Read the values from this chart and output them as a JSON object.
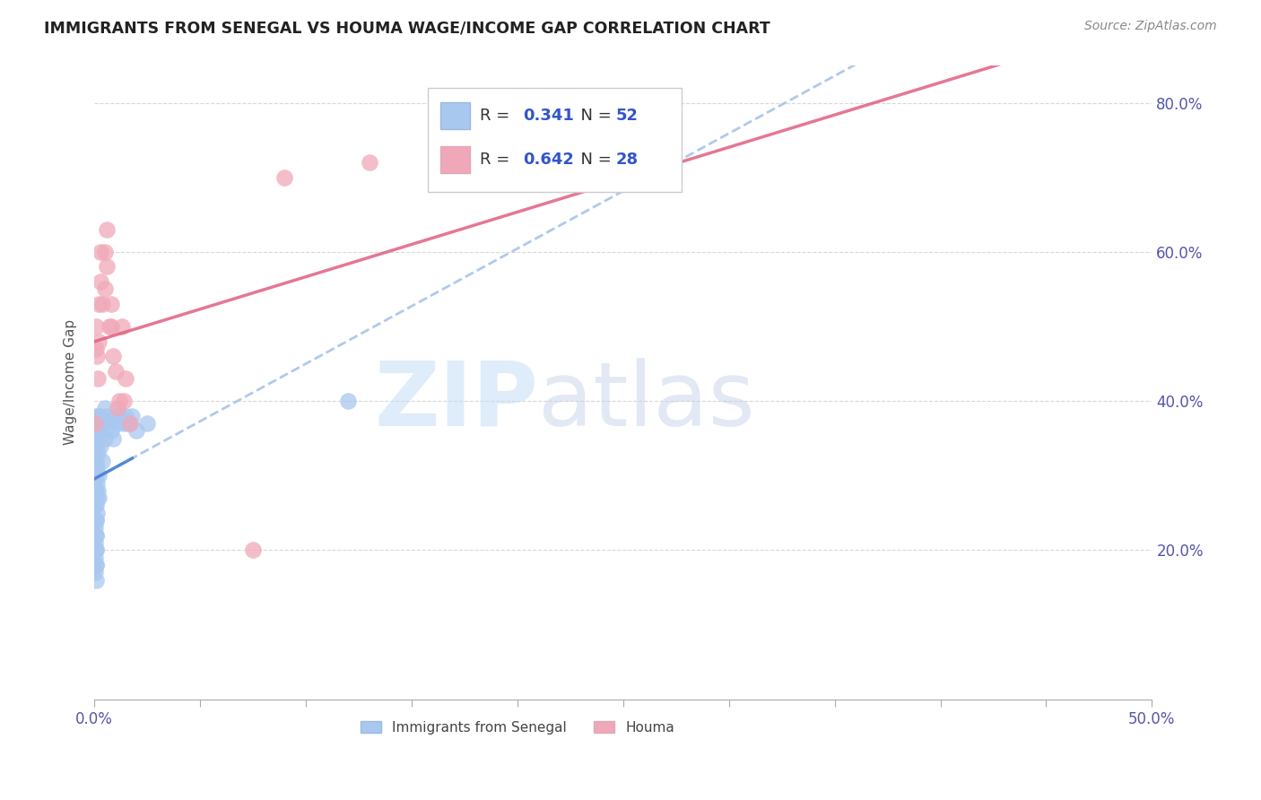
{
  "title": "IMMIGRANTS FROM SENEGAL VS HOUMA WAGE/INCOME GAP CORRELATION CHART",
  "source": "Source: ZipAtlas.com",
  "ylabel": "Wage/Income Gap",
  "ytick_vals": [
    0.2,
    0.4,
    0.6,
    0.8
  ],
  "ytick_labels": [
    "20.0%",
    "40.0%",
    "60.0%",
    "80.0%"
  ],
  "legend_blue_r": "0.341",
  "legend_blue_n": "52",
  "legend_pink_r": "0.642",
  "legend_pink_n": "28",
  "blue_color": "#a8c8f0",
  "pink_color": "#f0a8b8",
  "blue_line_color": "#4a7fd4",
  "pink_line_color": "#e06080",
  "blue_dash_color": "#a8c4e8",
  "xlim": [
    0.0,
    0.5
  ],
  "ylim": [
    0.0,
    0.85
  ],
  "grid_color": "#d8d8d8",
  "blue_dots_x": [
    0.0005,
    0.0005,
    0.0005,
    0.0005,
    0.0005,
    0.0007,
    0.0007,
    0.0007,
    0.0008,
    0.001,
    0.001,
    0.001,
    0.001,
    0.001,
    0.001,
    0.001,
    0.001,
    0.001,
    0.001,
    0.001,
    0.001,
    0.0012,
    0.0012,
    0.0013,
    0.0014,
    0.0015,
    0.0015,
    0.0015,
    0.002,
    0.002,
    0.002,
    0.002,
    0.003,
    0.003,
    0.004,
    0.004,
    0.005,
    0.005,
    0.006,
    0.007,
    0.008,
    0.009,
    0.01,
    0.011,
    0.012,
    0.014,
    0.015,
    0.016,
    0.018,
    0.02,
    0.025,
    0.12
  ],
  "blue_dots_y": [
    0.26,
    0.23,
    0.21,
    0.19,
    0.17,
    0.24,
    0.22,
    0.2,
    0.18,
    0.38,
    0.36,
    0.34,
    0.32,
    0.3,
    0.28,
    0.26,
    0.24,
    0.22,
    0.2,
    0.18,
    0.16,
    0.31,
    0.29,
    0.27,
    0.25,
    0.35,
    0.33,
    0.28,
    0.38,
    0.36,
    0.3,
    0.27,
    0.38,
    0.34,
    0.37,
    0.32,
    0.39,
    0.35,
    0.38,
    0.37,
    0.36,
    0.35,
    0.38,
    0.37,
    0.38,
    0.37,
    0.38,
    0.37,
    0.38,
    0.36,
    0.37,
    0.4
  ],
  "pink_dots_x": [
    0.0005,
    0.001,
    0.001,
    0.0012,
    0.0015,
    0.002,
    0.002,
    0.003,
    0.003,
    0.004,
    0.005,
    0.005,
    0.006,
    0.006,
    0.007,
    0.008,
    0.008,
    0.009,
    0.01,
    0.011,
    0.012,
    0.013,
    0.014,
    0.015,
    0.017,
    0.075,
    0.09,
    0.13
  ],
  "pink_dots_y": [
    0.37,
    0.5,
    0.47,
    0.46,
    0.43,
    0.53,
    0.48,
    0.6,
    0.56,
    0.53,
    0.6,
    0.55,
    0.63,
    0.58,
    0.5,
    0.53,
    0.5,
    0.46,
    0.44,
    0.39,
    0.4,
    0.5,
    0.4,
    0.43,
    0.37,
    0.2,
    0.7,
    0.72
  ]
}
